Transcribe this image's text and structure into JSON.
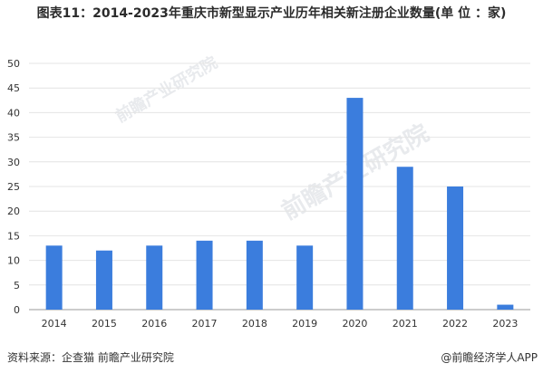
{
  "title": "图表11：2014-2023年重庆市新型显示产业历年相关新注册企业数量(单 位 ：家)",
  "source": "资料来源：企查猫 前瞻产业研究院",
  "brand": "@前瞻经济学人APP",
  "watermark": "前瞻产业研究院",
  "colors": {
    "bar": "#3b7ddd",
    "grid": "#e4e4e4",
    "axis": "#999999"
  },
  "chart_data": {
    "type": "bar",
    "categories": [
      "2014",
      "2015",
      "2016",
      "2017",
      "2018",
      "2019",
      "2020",
      "2021",
      "2022",
      "2023"
    ],
    "values": [
      13,
      12,
      13,
      14,
      14,
      13,
      43,
      29,
      25,
      1
    ],
    "ylim": [
      0,
      50
    ],
    "yticks": [
      0,
      5,
      10,
      15,
      20,
      25,
      30,
      35,
      40,
      45,
      50
    ],
    "grid": true
  }
}
